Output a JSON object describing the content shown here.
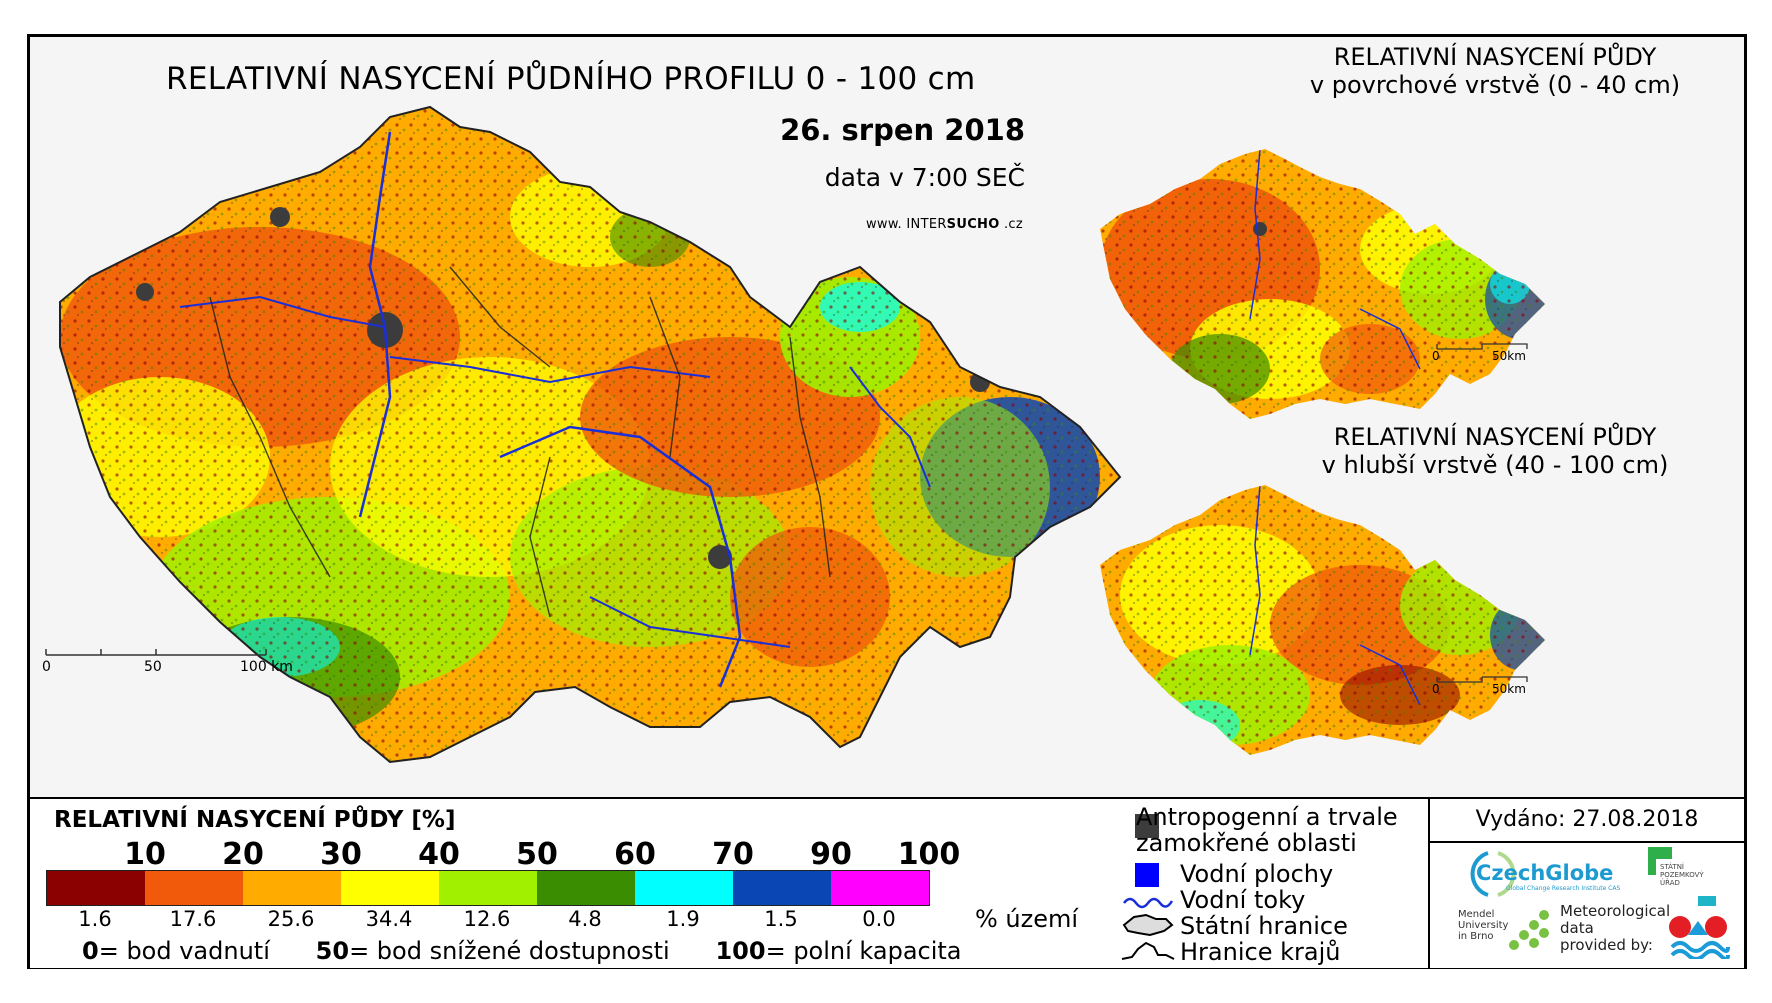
{
  "header": {
    "title": "RELATIVNÍ NASYCENÍ PŮDNÍHO PROFILU 0 - 100 cm",
    "date": "26. srpen 2018",
    "data_time": "data v 7:00 SEČ",
    "website_prefix": "www. INTER",
    "website_bold": "SUCHO",
    "website_suffix": " .cz"
  },
  "small_maps": [
    {
      "title_line1": "RELATIVNÍ NASYCENÍ PŮDY",
      "title_line2": "v povrchové vrstvě (0 - 40 cm)",
      "scale_left": "0",
      "scale_right": "50km"
    },
    {
      "title_line1": "RELATIVNÍ NASYCENÍ PŮDY",
      "title_line2": "v hlubší vrstvě (40 - 100 cm)",
      "scale_left": "0",
      "scale_right": "50km"
    }
  ],
  "main_scale": {
    "labels": [
      "0",
      "50",
      "100 km"
    ]
  },
  "legend": {
    "title": "RELATIVNÍ NASYCENÍ PŮDY [%]",
    "bin_labels": [
      "10",
      "20",
      "30",
      "40",
      "50",
      "60",
      "70",
      "90",
      "100"
    ],
    "colors": [
      "#8b0000",
      "#f05a0a",
      "#ffab00",
      "#ffff00",
      "#a0f000",
      "#3a8c00",
      "#00ffff",
      "#0a46b4",
      "#ff00ff"
    ],
    "area_percent": [
      "1.6",
      "17.6",
      "25.6",
      "34.4",
      "12.6",
      "4.8",
      "1.9",
      "1.5",
      "0.0"
    ],
    "area_unit": "% území",
    "def_0_num": "0",
    "def_0_text": "= bod vadnutí",
    "def_50_num": "50",
    "def_50_text": "= bod snížené dostupnosti",
    "def_100_num": "100",
    "def_100_text": "= polní kapacita"
  },
  "symbol_legend": {
    "item1_line1": "Antropogenní a trvale",
    "item1_line2": "zamokřené oblasti",
    "item2": "Vodní plochy",
    "item3": "Vodní toky",
    "item4": "Státní hranice",
    "item5": "Hranice krajů",
    "anthro_color": "#3c3c3c",
    "water_color": "#0000ff"
  },
  "issued": "Vydáno: 27.08.2018",
  "logos": {
    "czechglobe": "CzechGlobe",
    "czechglobe_sub": "Global Change Research Institute CAS",
    "spu_line1": "STÁTNÍ",
    "spu_line2": "POZEMKOVÝ",
    "spu_line3": "ÚŘAD",
    "mendel_line1": "Mendel",
    "mendel_line2": "University",
    "mendel_line3": "in Brno",
    "met_line1": "Meteorological",
    "met_line2": "data",
    "met_line3": "provided by:"
  }
}
